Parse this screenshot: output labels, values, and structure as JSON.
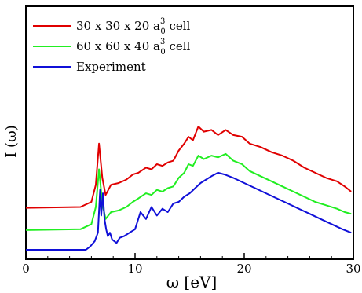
{
  "chart_data": {
    "type": "line",
    "xlabel": "ω  [eV]",
    "ylabel": "I (ω)",
    "xlim": [
      0,
      30
    ],
    "ylim": [
      0,
      1
    ],
    "x_ticks": [
      "0",
      "10",
      "20",
      "30"
    ],
    "grid": false,
    "legend_position": "top-left",
    "series": [
      {
        "name": "30 x 30 x 20 a",
        "name_sup": "3",
        "name_sub": "0",
        "name_suffix": " cell",
        "color": "#e00000",
        "x": [
          0,
          5,
          6,
          6.4,
          6.7,
          7.0,
          7.3,
          7.8,
          8.5,
          9.2,
          9.8,
          10.3,
          11.0,
          11.5,
          12.0,
          12.5,
          13.0,
          13.5,
          14.0,
          14.5,
          14.9,
          15.3,
          15.8,
          16.3,
          17.0,
          17.6,
          18.3,
          19.0,
          19.8,
          20.5,
          21.5,
          22.5,
          23.5,
          24.5,
          25.5,
          26.5,
          27.5,
          28.5,
          29.2,
          29.8
        ],
        "y": [
          0.245,
          0.25,
          0.28,
          0.38,
          0.62,
          0.42,
          0.32,
          0.38,
          0.39,
          0.41,
          0.44,
          0.45,
          0.48,
          0.47,
          0.5,
          0.49,
          0.51,
          0.52,
          0.58,
          0.62,
          0.66,
          0.64,
          0.72,
          0.69,
          0.7,
          0.67,
          0.7,
          0.67,
          0.66,
          0.62,
          0.6,
          0.57,
          0.55,
          0.52,
          0.48,
          0.45,
          0.42,
          0.4,
          0.37,
          0.34
        ]
      },
      {
        "name": "60 x 60 x 40 a",
        "name_sup": "3",
        "name_sub": "0",
        "name_suffix": " cell",
        "color": "#22ee22",
        "x": [
          0,
          5,
          6,
          6.4,
          6.7,
          7.0,
          7.3,
          7.8,
          8.5,
          9.2,
          9.8,
          10.3,
          11.0,
          11.5,
          12.0,
          12.5,
          13.0,
          13.5,
          14.0,
          14.5,
          14.9,
          15.3,
          15.8,
          16.3,
          17.0,
          17.6,
          18.3,
          19.0,
          19.8,
          20.5,
          21.5,
          22.5,
          23.5,
          24.5,
          25.5,
          26.5,
          27.5,
          28.5,
          29.2,
          29.8
        ],
        "y": [
          0.115,
          0.12,
          0.15,
          0.25,
          0.47,
          0.27,
          0.18,
          0.22,
          0.23,
          0.25,
          0.28,
          0.3,
          0.33,
          0.32,
          0.35,
          0.34,
          0.36,
          0.37,
          0.42,
          0.45,
          0.5,
          0.49,
          0.55,
          0.53,
          0.55,
          0.54,
          0.56,
          0.52,
          0.5,
          0.46,
          0.43,
          0.4,
          0.37,
          0.34,
          0.31,
          0.28,
          0.26,
          0.24,
          0.22,
          0.21
        ]
      },
      {
        "name": "Experiment",
        "name_sup": "",
        "name_sub": "",
        "name_suffix": "",
        "color": "#1010d8",
        "x": [
          0,
          4.5,
          5.5,
          5.9,
          6.3,
          6.6,
          6.8,
          6.9,
          7.05,
          7.2,
          7.35,
          7.5,
          7.7,
          7.9,
          8.1,
          8.3,
          8.6,
          9.0,
          9.5,
          10.0,
          10.5,
          11.0,
          11.5,
          12.0,
          12.5,
          13.0,
          13.5,
          14.0,
          14.5,
          15.0,
          15.5,
          16.0,
          16.5,
          17.0,
          17.6,
          18.2,
          19.0,
          20.0,
          21.0,
          22.0,
          23.0,
          24.0,
          25.0,
          26.0,
          27.0,
          28.0,
          29.0,
          29.8
        ],
        "y": [
          0.0,
          0.0,
          0.0,
          0.02,
          0.05,
          0.1,
          0.35,
          0.2,
          0.33,
          0.18,
          0.12,
          0.08,
          0.1,
          0.06,
          0.05,
          0.04,
          0.07,
          0.08,
          0.1,
          0.12,
          0.22,
          0.18,
          0.25,
          0.2,
          0.24,
          0.22,
          0.27,
          0.28,
          0.31,
          0.33,
          0.36,
          0.39,
          0.41,
          0.43,
          0.45,
          0.44,
          0.42,
          0.39,
          0.36,
          0.33,
          0.3,
          0.27,
          0.24,
          0.21,
          0.18,
          0.15,
          0.12,
          0.1
        ]
      }
    ]
  }
}
